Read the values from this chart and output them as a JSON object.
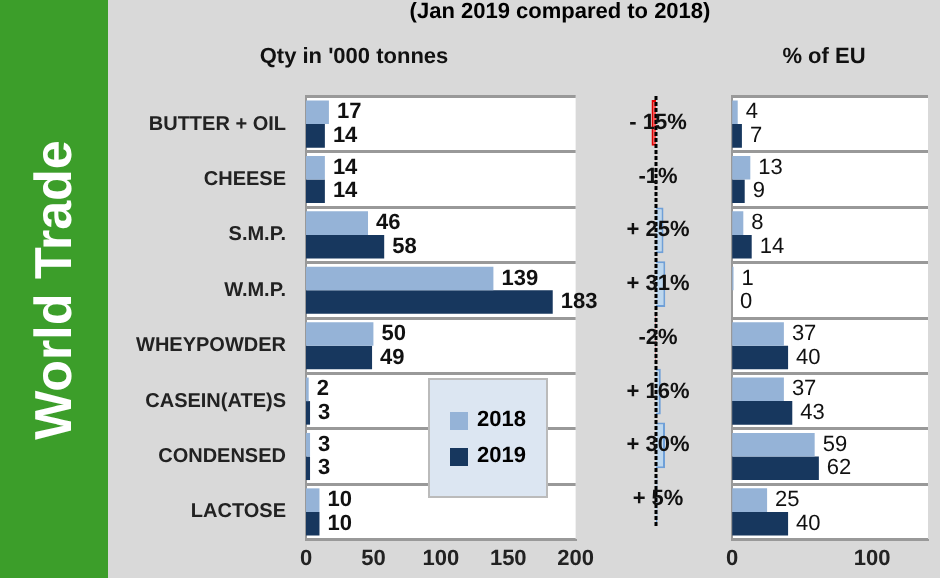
{
  "chart_data": [
    {
      "type": "bar",
      "orientation": "horizontal",
      "title": "Qty in '000 tonnes",
      "annotations": [
        "World Trade",
        "(Jan 2019 compared to 2018)"
      ],
      "categories": [
        "BUTTER + OIL",
        "CHEESE",
        "S.M.P.",
        "W.M.P.",
        "WHEYPOWDER",
        "CASEIN(ATE)S",
        "CONDENSED",
        "LACTOSE"
      ],
      "series": [
        {
          "name": "2018",
          "color": "#95b3d7",
          "values": [
            17,
            14,
            46,
            139,
            50,
            2,
            3,
            10
          ]
        },
        {
          "name": "2019",
          "color": "#17375e",
          "values": [
            14,
            14,
            58,
            183,
            49,
            3,
            3,
            10
          ]
        }
      ],
      "xlim": [
        0,
        200
      ],
      "xticks": [
        0,
        50,
        100,
        150,
        200
      ],
      "data_labels": true,
      "legend": "bottom right",
      "grid": "y"
    },
    {
      "type": "bar",
      "orientation": "horizontal",
      "values": [
        -15,
        -1,
        25,
        31,
        -2,
        16,
        30,
        5
      ],
      "colors": [
        "#ff5050",
        "#ff5050",
        "#bdd7ee",
        "#bdd7ee",
        "#ff5050",
        "#bdd7ee",
        "#bdd7ee",
        "#bdd7ee"
      ],
      "value_labels": [
        "- 15%",
        "-1%",
        "+ 25%",
        "+ 31%",
        "-2%",
        "+ 16%",
        "+ 30%",
        "+ 5%"
      ],
      "ref_lines": [
        {
          "axis": "x",
          "value": 0,
          "line_style": "dotted",
          "color": "#000000"
        }
      ],
      "tick_labels": false
    },
    {
      "type": "bar",
      "orientation": "horizontal",
      "title": "% of EU",
      "series": [
        {
          "color": "#95b3d7",
          "values": [
            4,
            13,
            8,
            1,
            37,
            37,
            59,
            25
          ]
        },
        {
          "color": "#17375e",
          "values": [
            7,
            9,
            14,
            0,
            40,
            43,
            62,
            40
          ]
        }
      ],
      "xlim": [
        0,
        140
      ],
      "xticks": [
        0,
        100
      ],
      "data_labels": true,
      "tick_labels": "x",
      "grid": "y"
    }
  ]
}
